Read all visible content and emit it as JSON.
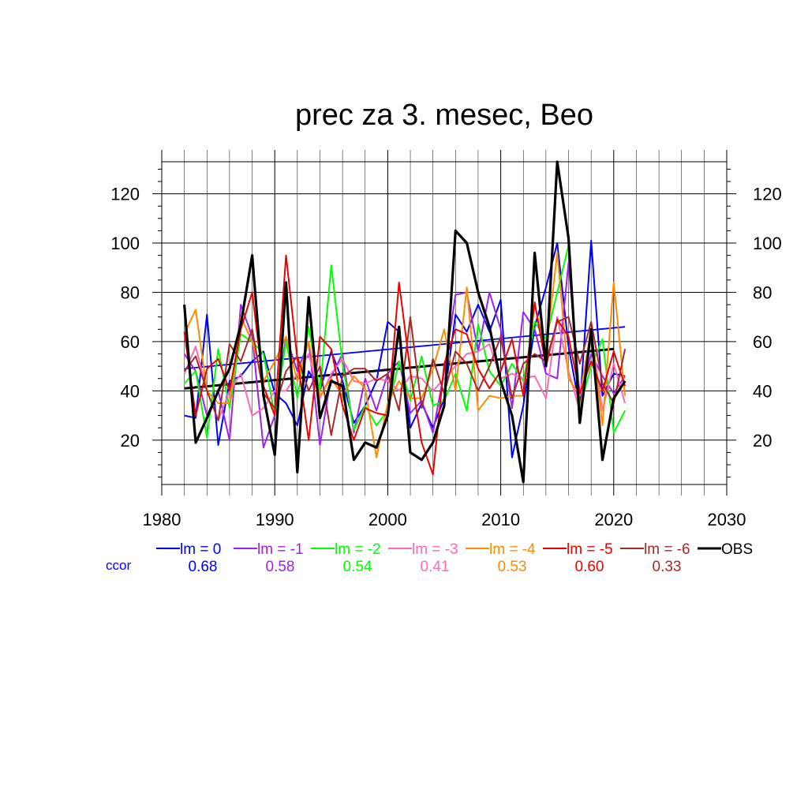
{
  "chart_data": {
    "type": "line",
    "title": "prec za 3. mesec, Beo",
    "xlabel": "",
    "ylabel": "",
    "xlim": [
      1980,
      2030
    ],
    "ylim": [
      2,
      133
    ],
    "x_ticks": [
      1980,
      1990,
      2000,
      2010,
      2020,
      2030
    ],
    "y_ticks": [
      20,
      40,
      60,
      80,
      100,
      120
    ],
    "x_tick_labels": [
      "1980",
      "1990",
      "2000",
      "2010",
      "2020",
      "2030"
    ],
    "y_tick_labels": [
      "20",
      "40",
      "60",
      "80",
      "100",
      "120"
    ],
    "grid": true,
    "legend_position": "bottom",
    "ccor_label": "ccor",
    "x": [
      1982,
      1983,
      1984,
      1985,
      1986,
      1987,
      1988,
      1989,
      1990,
      1991,
      1992,
      1993,
      1994,
      1995,
      1996,
      1997,
      1998,
      1999,
      2000,
      2001,
      2002,
      2003,
      2004,
      2005,
      2006,
      2007,
      2008,
      2009,
      2010,
      2011,
      2012,
      2013,
      2014,
      2015,
      2016,
      2017,
      2018,
      2019,
      2020,
      2021
    ],
    "series": [
      {
        "name": "lm = 0",
        "color": "#0000ff",
        "ccor": "0.68",
        "values": [
          30,
          29,
          71,
          18,
          44,
          46,
          52,
          56,
          39,
          35,
          26,
          48,
          40,
          56,
          44,
          27,
          34,
          44,
          68,
          64,
          25,
          35,
          25,
          37,
          71,
          64,
          75,
          64,
          77,
          13,
          34,
          66,
          82,
          100,
          58,
          33,
          101,
          38,
          47,
          46
        ],
        "trend": [
          49,
          66
        ]
      },
      {
        "name": "lm = -1",
        "color": "#a020f0",
        "ccor": "0.58",
        "values": [
          55,
          48,
          30,
          40,
          20,
          75,
          62,
          17,
          30,
          62,
          48,
          60,
          18,
          46,
          55,
          23,
          45,
          32,
          47,
          52,
          31,
          36,
          23,
          48,
          79,
          80,
          56,
          80,
          65,
          33,
          72,
          65,
          47,
          45,
          92,
          38,
          55,
          46,
          39,
          46
        ]
      },
      {
        "name": "lm = -2",
        "color": "#00ff00",
        "ccor": "0.54",
        "values": [
          43,
          48,
          21,
          57,
          33,
          63,
          60,
          55,
          30,
          60,
          37,
          66,
          40,
          91,
          51,
          24,
          34,
          26,
          32,
          52,
          36,
          54,
          34,
          36,
          47,
          32,
          67,
          48,
          42,
          51,
          44,
          68,
          61,
          80,
          99,
          33,
          50,
          61,
          23,
          32
        ]
      },
      {
        "name": "lm = -3",
        "color": "#ff69b4",
        "ccor": "0.41",
        "values": [
          47,
          58,
          40,
          28,
          40,
          47,
          30,
          33,
          40,
          40,
          47,
          55,
          37,
          47,
          53,
          44,
          43,
          45,
          44,
          40,
          46,
          45,
          40,
          45,
          50,
          55,
          56,
          59,
          45,
          47,
          45,
          46,
          37,
          70,
          48,
          32,
          64,
          32,
          51,
          35
        ]
      },
      {
        "name": "lm = -4",
        "color": "#ff8c00",
        "ccor": "0.53",
        "values": [
          63,
          73,
          40,
          35,
          35,
          70,
          60,
          44,
          52,
          62,
          44,
          60,
          38,
          45,
          38,
          46,
          41,
          13,
          35,
          44,
          37,
          37,
          49,
          65,
          40,
          82,
          32,
          38,
          37,
          38,
          38,
          75,
          56,
          96,
          45,
          38,
          65,
          26,
          84,
          38
        ]
      },
      {
        "name": "lm = -5",
        "color": "#ee0000",
        "ccor": "0.60",
        "values": [
          64,
          30,
          49,
          53,
          40,
          65,
          80,
          42,
          30,
          95,
          53,
          20,
          62,
          57,
          34,
          20,
          33,
          31,
          30,
          84,
          48,
          19,
          6,
          51,
          65,
          63,
          49,
          41,
          48,
          61,
          38,
          76,
          50,
          69,
          62,
          39,
          52,
          40,
          56,
          42
        ]
      },
      {
        "name": "lm = -6",
        "color": "#a52a2a",
        "ccor": "0.33",
        "values": [
          48,
          54,
          40,
          28,
          59,
          52,
          65,
          39,
          33,
          48,
          54,
          40,
          50,
          22,
          46,
          49,
          49,
          44,
          47,
          32,
          70,
          33,
          53,
          39,
          56,
          51,
          40,
          50,
          62,
          37,
          51,
          55,
          52,
          68,
          70,
          51,
          68,
          43,
          35,
          57
        ]
      },
      {
        "name": "OBS",
        "color": "#000000",
        "ccor": "",
        "values": [
          75,
          19,
          29,
          40,
          49,
          67,
          95,
          38,
          14,
          84,
          7,
          78,
          29,
          44,
          42,
          12,
          19,
          17,
          30,
          66,
          15,
          12,
          19,
          34,
          105,
          100,
          80,
          66,
          44,
          30,
          3,
          96,
          50,
          133,
          102,
          27,
          65,
          12,
          37,
          44
        ],
        "trend": [
          41,
          57
        ]
      }
    ]
  }
}
